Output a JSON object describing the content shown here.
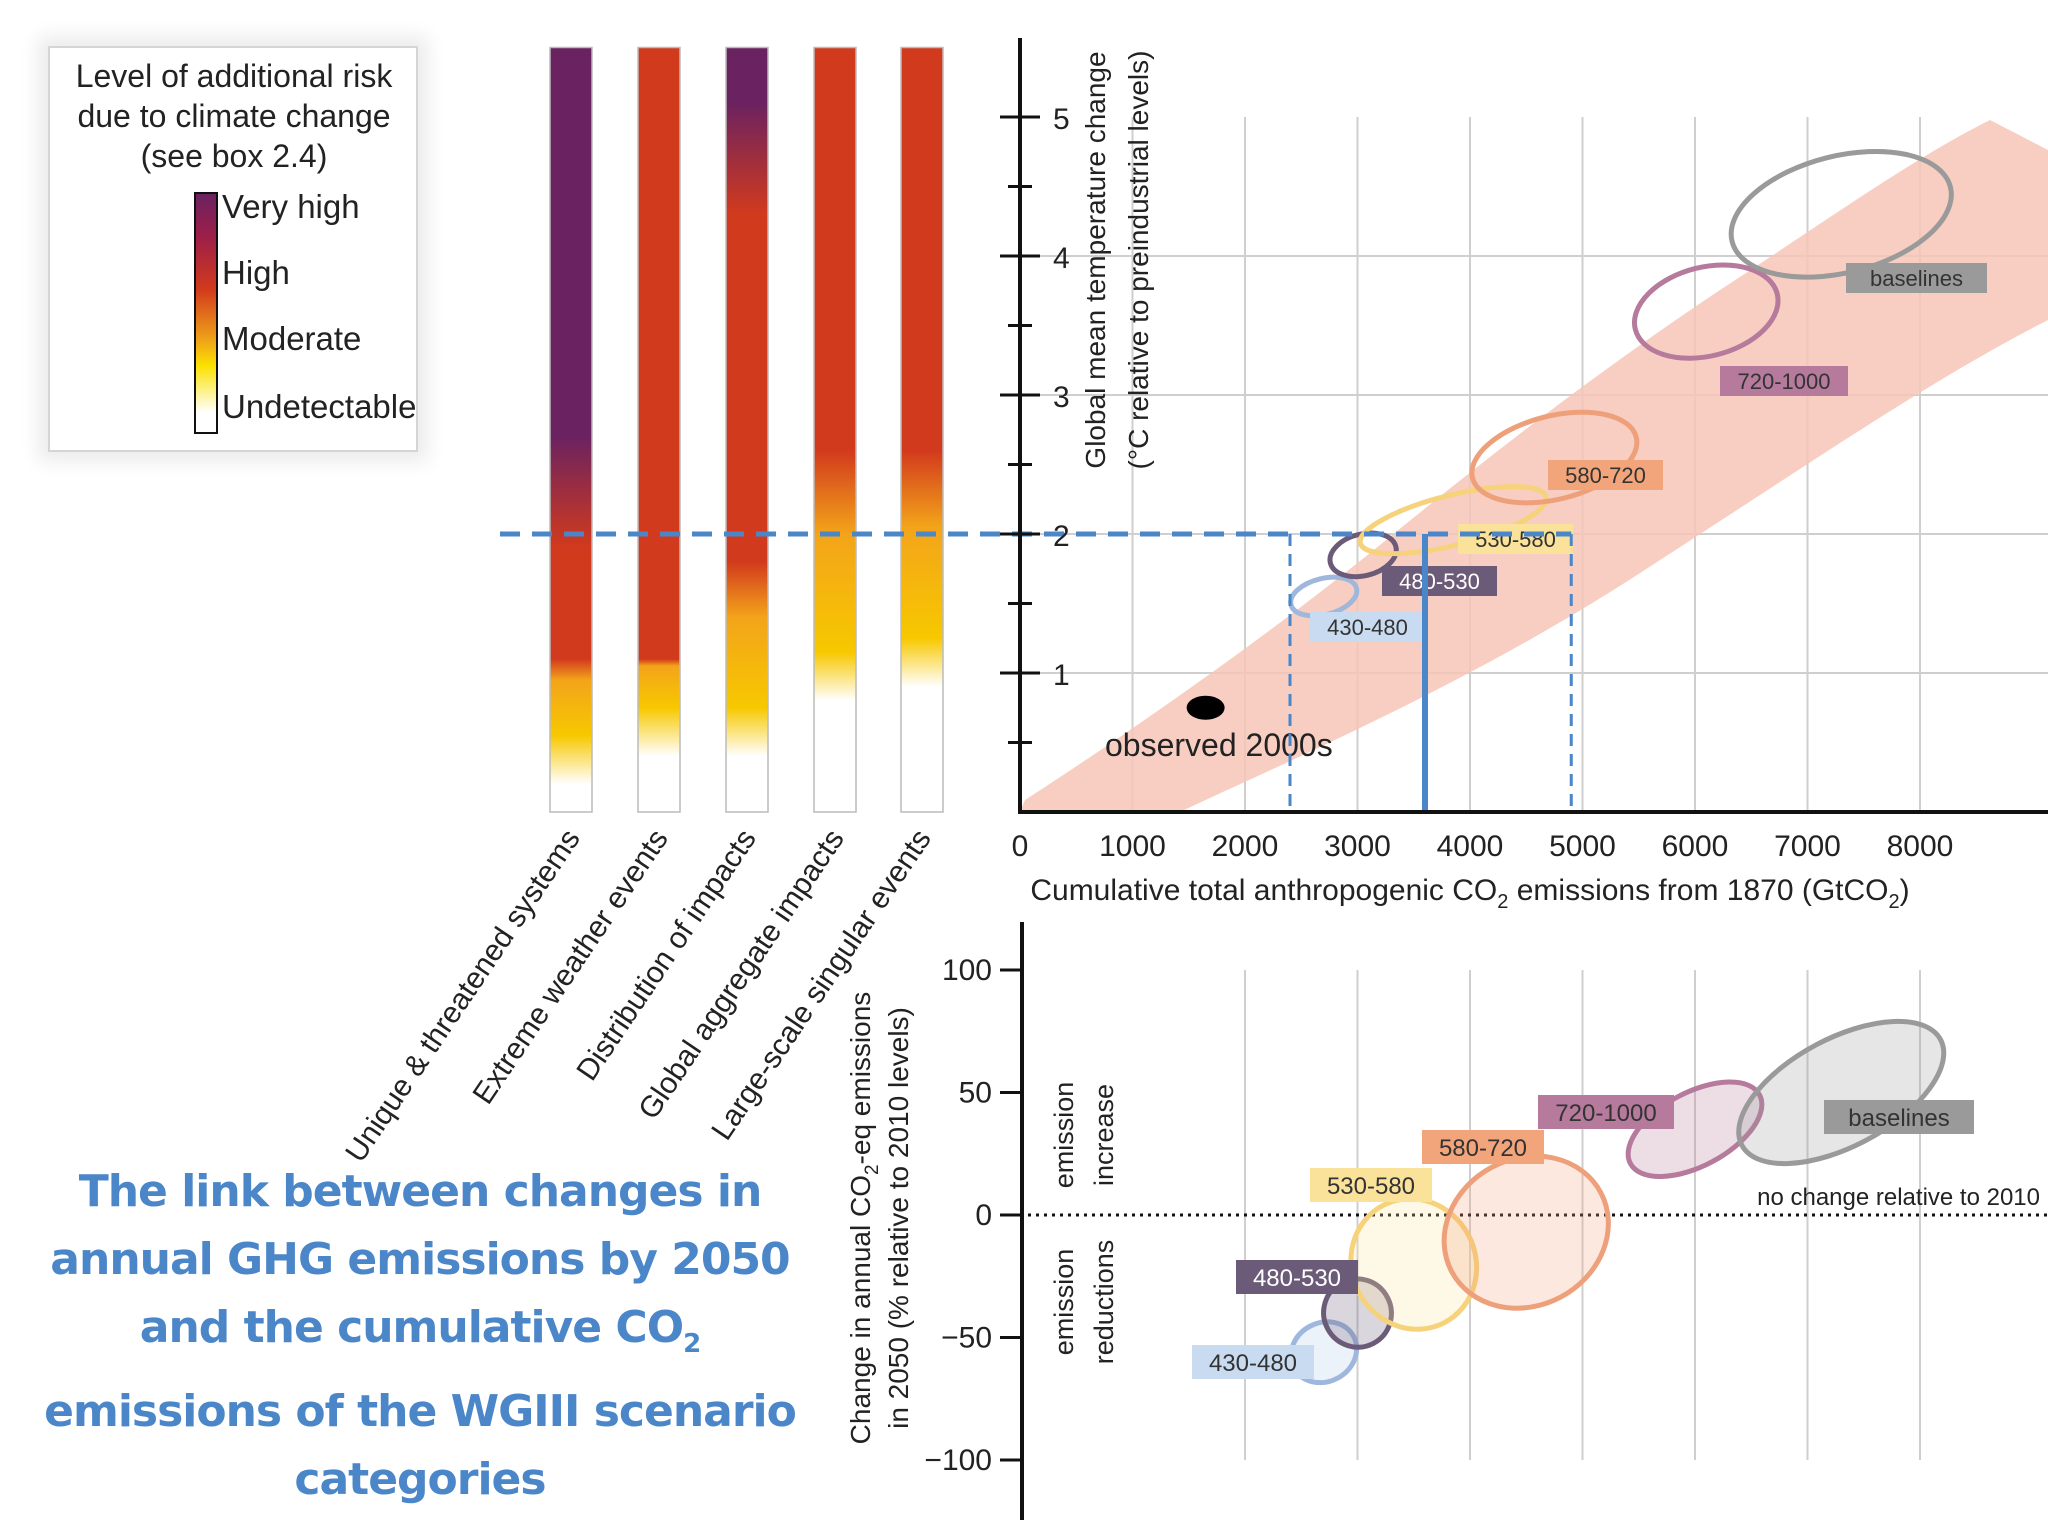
{
  "legend": {
    "title": "Level of additional risk due to climate change (see box 2.4)",
    "levels": [
      "Very high",
      "High",
      "Moderate",
      "Undetectable"
    ]
  },
  "caption": {
    "line1": "The link between changes in",
    "line2": "annual GHG emissions by 2050",
    "line3_pre": "and the cumulative CO",
    "line3_sub": "2",
    "line4": "emissions of the WGIII scenario",
    "line5": "categories"
  },
  "colors": {
    "dashed_guides": "#4a86c8",
    "very_high": "#6b2260",
    "high": "#d23a1d",
    "moderate": "#f7c800",
    "undetectable": "#ffffff",
    "uncertainty_band": "#f6c6b6",
    "caption": "#4a86c8"
  },
  "chart_data": [
    {
      "type": "heatmap",
      "name": "risk_bars",
      "categories": [
        "Unique & threatened systems",
        "Extreme weather events",
        "Distribution of impacts",
        "Global aggregate impacts",
        "Large-scale singular events"
      ],
      "ylim": [
        0,
        5.5
      ],
      "transitions_degC": [
        {
          "undetectable_to_moderate": 0.4,
          "moderate_to_high": 1.1,
          "high_to_very_high": 2.2
        },
        {
          "undetectable_to_moderate": 0.6,
          "moderate_to_high": 1.1,
          "high_to_very_high": null
        },
        {
          "undetectable_to_moderate": 0.6,
          "moderate_to_high": 1.8,
          "high_to_very_high": 4.6
        },
        {
          "undetectable_to_moderate": 1.0,
          "moderate_to_high": 2.6,
          "high_to_very_high": null
        },
        {
          "undetectable_to_moderate": 1.1,
          "moderate_to_high": 2.6,
          "high_to_very_high": null
        }
      ]
    },
    {
      "type": "scatter",
      "name": "temperature_vs_cumulative",
      "xlabel_pre": "Cumulative total anthropogenic CO",
      "xlabel_sub": "2",
      "xlabel_mid": " emissions from 1870 (GtCO",
      "xlabel_sub2": "2",
      "xlabel_post": ")",
      "ylabel_line1": "Global mean temperature change",
      "ylabel_line2": "(°C relative to preindustrial levels)",
      "xlim": [
        0,
        9000
      ],
      "ylim": [
        0,
        5.5
      ],
      "xticks": [
        0,
        1000,
        2000,
        3000,
        4000,
        5000,
        6000,
        7000,
        8000
      ],
      "yticks": [
        1,
        2,
        3,
        4,
        5
      ],
      "observed": {
        "label": "observed 2000s",
        "x": 1650,
        "y": 0.75
      },
      "guides": {
        "temperature": 2,
        "cumulative_low": 2400,
        "cumulative_mid": 3600,
        "cumulative_high": 4900
      },
      "scenarios": [
        {
          "label": "430-480",
          "cx": 2700,
          "cy": 1.55,
          "rx": 300,
          "ry": 0.13,
          "color": "#b3cbe8",
          "stroke": "#9fb7dc"
        },
        {
          "label": "480-530",
          "cx": 3050,
          "cy": 1.85,
          "rx": 300,
          "ry": 0.15,
          "color": "#6b5b78",
          "stroke": "#6b5b78"
        },
        {
          "label": "530-580",
          "cx": 3850,
          "cy": 2.1,
          "rx": 850,
          "ry": 0.18,
          "color": "#fbe29a",
          "stroke": "#f6d27a"
        },
        {
          "label": "580-720",
          "cx": 4750,
          "cy": 2.55,
          "rx": 750,
          "ry": 0.3,
          "color": "#f2a57a",
          "stroke": "#eea07a"
        },
        {
          "label": "720-1000",
          "cx": 6100,
          "cy": 3.6,
          "rx": 650,
          "ry": 0.32,
          "color": "#b67a9c",
          "stroke": "#b67a9c"
        },
        {
          "label": "baselines",
          "cx": 7300,
          "cy": 4.3,
          "rx": 1000,
          "ry": 0.42,
          "color": "#9a9a9a",
          "stroke": "#9a9a9a"
        }
      ]
    },
    {
      "type": "scatter",
      "name": "annual_change_vs_cumulative",
      "ylabel_pre": "Change in annual CO",
      "ylabel_sub": "2",
      "ylabel_post": "-eq emissions",
      "ylabel_line2": "in 2050 (% relative to 2010 levels)",
      "ylim": [
        -100,
        100
      ],
      "yticks": [
        100,
        50,
        0,
        -50,
        -100
      ],
      "reference_line": {
        "label": "no change relative to 2010",
        "y": 0
      },
      "annotations": [
        {
          "text": "emission increase",
          "region": "above zero"
        },
        {
          "text": "emission reductions",
          "region": "below zero"
        }
      ],
      "scenarios": [
        {
          "label": "430-480",
          "cx": 2700,
          "cy": -56,
          "rx": 300,
          "ry": 12,
          "color": "#b3cbe8",
          "stroke": "#9fb7dc"
        },
        {
          "label": "480-530",
          "cx": 3000,
          "cy": -40,
          "rx": 300,
          "ry": 14,
          "color": "#6b5b78",
          "stroke": "#6b5b78"
        },
        {
          "label": "530-580",
          "cx": 3500,
          "cy": -20,
          "rx": 550,
          "ry": 27,
          "color": "#fbe29a",
          "stroke": "#f6d27a"
        },
        {
          "label": "580-720",
          "cx": 4500,
          "cy": -7,
          "rx": 750,
          "ry": 30,
          "color": "#f2a57a",
          "stroke": "#eea07a"
        },
        {
          "label": "720-1000",
          "cx": 6000,
          "cy": 35,
          "rx": 650,
          "ry": 15,
          "color": "#b67a9c",
          "stroke": "#b67a9c"
        },
        {
          "label": "baselines",
          "cx": 7300,
          "cy": 50,
          "rx": 1000,
          "ry": 22,
          "color": "#9a9a9a",
          "stroke": "#9a9a9a"
        }
      ]
    }
  ]
}
